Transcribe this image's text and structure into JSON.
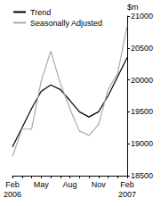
{
  "chart_data": {
    "type": "line",
    "y_label": "$m",
    "categories": [
      "Feb\n2006",
      null,
      null,
      "May",
      null,
      null,
      "Aug",
      null,
      null,
      "Nov",
      null,
      null,
      "Feb\n2007"
    ],
    "series": [
      {
        "name": "Trend",
        "color": "#000000",
        "values": [
          18950,
          19250,
          19550,
          19820,
          19920,
          19850,
          19680,
          19500,
          19420,
          19500,
          19750,
          20050,
          20350
        ]
      },
      {
        "name": "Seasonally Adjusted",
        "color": "#aaaaaa",
        "values": [
          18800,
          19230,
          19230,
          19980,
          20450,
          19950,
          19550,
          19200,
          19130,
          19300,
          19850,
          20100,
          20850
        ]
      }
    ],
    "ylim": [
      18500,
      21000
    ],
    "yticks": [
      18500,
      19000,
      19500,
      20000,
      20500,
      21000
    ],
    "grid": false,
    "legend": "top-left"
  }
}
